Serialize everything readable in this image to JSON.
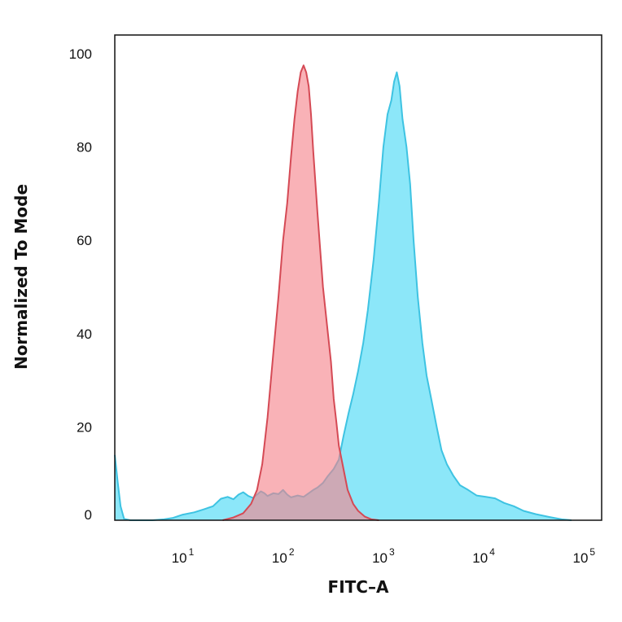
{
  "chart_data": {
    "type": "area",
    "title": "",
    "xlabel": "FITC–A",
    "ylabel": "Normalized To Mode",
    "xscale": "log",
    "xlim": [
      2.1,
      150000
    ],
    "ylim": [
      0,
      104
    ],
    "yticks": [
      0,
      20,
      40,
      60,
      80,
      100
    ],
    "xticks": [
      {
        "value": 10,
        "base": "10",
        "exp": "1"
      },
      {
        "value": 100,
        "base": "10",
        "exp": "2"
      },
      {
        "value": 1000,
        "base": "10",
        "exp": "3"
      },
      {
        "value": 10000,
        "base": "10",
        "exp": "4"
      },
      {
        "value": 100000,
        "base": "10",
        "exp": "5"
      }
    ],
    "grid": false,
    "legend": "none",
    "series": [
      {
        "color": "#7fe4f8",
        "stroke": "#3ec3e2",
        "x": [
          2.1,
          2.25,
          2.4,
          2.6,
          3,
          3.8,
          5,
          6.5,
          8,
          10,
          13,
          16,
          20,
          24,
          28,
          32,
          36,
          40,
          45,
          50,
          55,
          60,
          65,
          70,
          80,
          90,
          100,
          110,
          120,
          140,
          160,
          180,
          200,
          220,
          250,
          280,
          320,
          360,
          400,
          450,
          500,
          560,
          630,
          700,
          800,
          900,
          1000,
          1100,
          1200,
          1280,
          1360,
          1450,
          1550,
          1700,
          1850,
          2000,
          2200,
          2450,
          2700,
          3000,
          3400,
          3800,
          4300,
          5000,
          5800,
          7000,
          8500,
          10500,
          13000,
          16000,
          20000,
          25000,
          33000,
          45000,
          60000,
          75000
        ],
        "y": [
          14,
          8,
          3,
          0.3,
          0,
          0,
          0,
          0.2,
          0.5,
          1.2,
          1.7,
          2.3,
          3,
          4.6,
          5,
          4.5,
          5.5,
          6,
          5.2,
          4.8,
          5.5,
          6.2,
          5.8,
          5.2,
          5.8,
          5.6,
          6.5,
          5.5,
          4.9,
          5.3,
          5,
          5.8,
          6.5,
          7,
          8,
          9.5,
          11,
          13,
          18,
          23,
          27,
          32,
          38,
          45,
          56,
          68,
          80,
          87,
          90,
          94,
          96,
          93,
          86,
          80,
          72,
          60,
          48,
          38,
          31,
          26,
          20,
          15,
          12,
          9.5,
          7.5,
          6.5,
          5.3,
          5,
          4.7,
          3.7,
          3,
          2,
          1.3,
          0.7,
          0.2,
          0
        ]
      },
      {
        "color": "#f6838a",
        "stroke": "#d54a55",
        "x": [
          25,
          32,
          40,
          48,
          55,
          62,
          70,
          80,
          90,
          100,
          110,
          120,
          130,
          140,
          150,
          160,
          170,
          180,
          190,
          200,
          220,
          250,
          280,
          300,
          320,
          340,
          360,
          400,
          440,
          500,
          560,
          650,
          760,
          900
        ],
        "y": [
          0,
          0.6,
          1.5,
          3.5,
          6.5,
          12,
          22,
          36,
          48,
          60,
          68,
          78,
          86,
          92,
          96,
          97.5,
          96,
          93,
          87,
          79,
          66,
          50,
          40,
          34,
          26,
          21,
          16,
          11,
          6.5,
          3.5,
          2,
          0.8,
          0.2,
          0
        ]
      }
    ]
  }
}
